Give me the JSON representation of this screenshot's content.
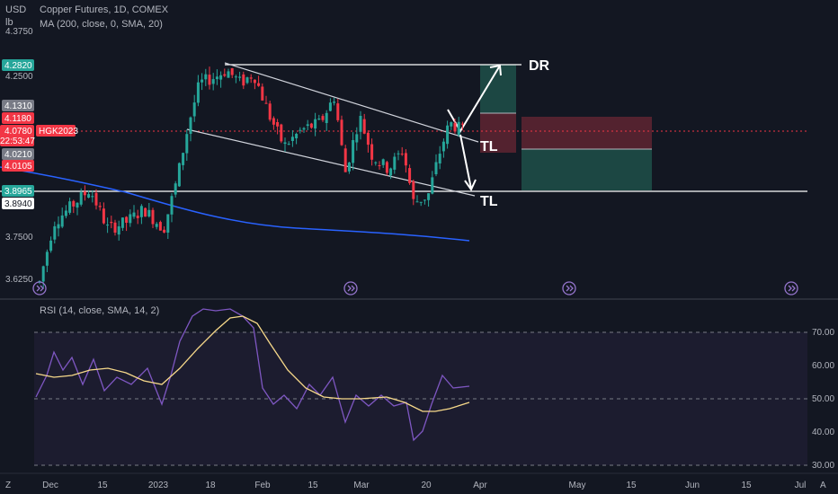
{
  "header": {
    "currency": "USD",
    "unit": "lb",
    "title": "Copper Futures, 1D, COMEX",
    "ma_label": "MA (200, close, 0, SMA, 20)",
    "rsi_label": "RSI (14, close, SMA, 14, 2)"
  },
  "symbol_tag": "HGK2023",
  "countdown": "22:53:47",
  "price_axis": {
    "top_label": "4.3750",
    "ticks": [
      "4.2500",
      "3.7500",
      "3.6250"
    ],
    "badges": [
      {
        "text": "4.2820",
        "color": "#26a69a"
      },
      {
        "text": "4.1310",
        "color": "#787b86"
      },
      {
        "text": "4.1180",
        "color": "#f23645"
      },
      {
        "text": "4.0780",
        "color": "#f23645"
      },
      {
        "text": "4.0210",
        "color": "#787b86"
      },
      {
        "text": "4.0105",
        "color": "#f23645"
      },
      {
        "text": "3.8965",
        "color": "#26a69a"
      },
      {
        "text": "3.8940",
        "color": "#ffffff"
      }
    ]
  },
  "rsi_axis": {
    "ticks": [
      "70.00",
      "60.00",
      "50.00",
      "40.00",
      "30.00"
    ]
  },
  "time_axis": {
    "ticks": [
      "Dec",
      "15",
      "2023",
      "18",
      "Feb",
      "15",
      "Mar",
      "20",
      "Apr",
      "May",
      "15",
      "Jun",
      "15",
      "Jul"
    ],
    "corner_left": "Z",
    "corner_right": "A"
  },
  "annotations": {
    "dr": "DR",
    "tl_upper": "TL",
    "tl_lower": "TL"
  },
  "colors": {
    "background": "#131722",
    "up": "#26a69a",
    "down": "#f23645",
    "ma": "#2962ff",
    "rsi": "#7e57c2",
    "rsi_ma": "#f7d98a",
    "lines": "#ffffff",
    "target_zone": "#1e4d47",
    "stop_zone": "#5b2331"
  },
  "chart_data": {
    "type": "candlestick",
    "title": "Copper Futures, 1D, COMEX",
    "price_range": [
      3.59,
      4.39
    ],
    "last_price": 4.078,
    "horizontal_lines": [
      4.282,
      3.8965
    ],
    "ohlc_approx": [
      {
        "date": "2022-12-01",
        "o": 3.64,
        "h": 3.69,
        "l": 3.6,
        "c": 3.66
      },
      {
        "date": "2022-12-15",
        "o": 3.84,
        "h": 3.89,
        "l": 3.79,
        "c": 3.82
      },
      {
        "date": "2023-01-03",
        "o": 3.78,
        "h": 3.83,
        "l": 3.72,
        "c": 3.81
      },
      {
        "date": "2023-01-18",
        "o": 4.2,
        "h": 4.3,
        "l": 4.14,
        "c": 4.24
      },
      {
        "date": "2023-02-01",
        "o": 4.18,
        "h": 4.22,
        "l": 4.08,
        "c": 4.1
      },
      {
        "date": "2023-03-01",
        "o": 4.05,
        "h": 4.13,
        "l": 4.03,
        "c": 4.1
      },
      {
        "date": "2023-03-15",
        "o": 3.95,
        "h": 3.98,
        "l": 3.84,
        "c": 3.88
      },
      {
        "date": "2023-03-20",
        "o": 3.92,
        "h": 4.02,
        "l": 3.89,
        "c": 4.0
      },
      {
        "date": "2023-03-28",
        "o": 4.08,
        "h": 4.13,
        "l": 4.06,
        "c": 4.078
      }
    ],
    "ma200": [
      {
        "date": "2022-12-01",
        "v": 3.97
      },
      {
        "date": "2023-01-03",
        "v": 3.86
      },
      {
        "date": "2023-02-01",
        "v": 3.8
      },
      {
        "date": "2023-03-01",
        "v": 3.78
      },
      {
        "date": "2023-03-28",
        "v": 3.74
      }
    ],
    "rsi": {
      "range": [
        27,
        79
      ],
      "levels": [
        70,
        50,
        30
      ],
      "series": [
        {
          "date": "2022-12-01",
          "v": 53
        },
        {
          "date": "2022-12-15",
          "v": 57
        },
        {
          "date": "2023-01-03",
          "v": 53
        },
        {
          "date": "2023-01-18",
          "v": 77
        },
        {
          "date": "2023-02-01",
          "v": 52
        },
        {
          "date": "2023-03-01",
          "v": 51
        },
        {
          "date": "2023-03-15",
          "v": 38
        },
        {
          "date": "2023-03-20",
          "v": 55
        },
        {
          "date": "2023-03-28",
          "v": 54
        }
      ],
      "ma": [
        {
          "date": "2022-12-01",
          "v": 57
        },
        {
          "date": "2022-12-15",
          "v": 58
        },
        {
          "date": "2023-01-03",
          "v": 55
        },
        {
          "date": "2023-01-18",
          "v": 71
        },
        {
          "date": "2023-02-01",
          "v": 62
        },
        {
          "date": "2023-03-01",
          "v": 51
        },
        {
          "date": "2023-03-15",
          "v": 48
        },
        {
          "date": "2023-03-28",
          "v": 49
        }
      ]
    }
  }
}
